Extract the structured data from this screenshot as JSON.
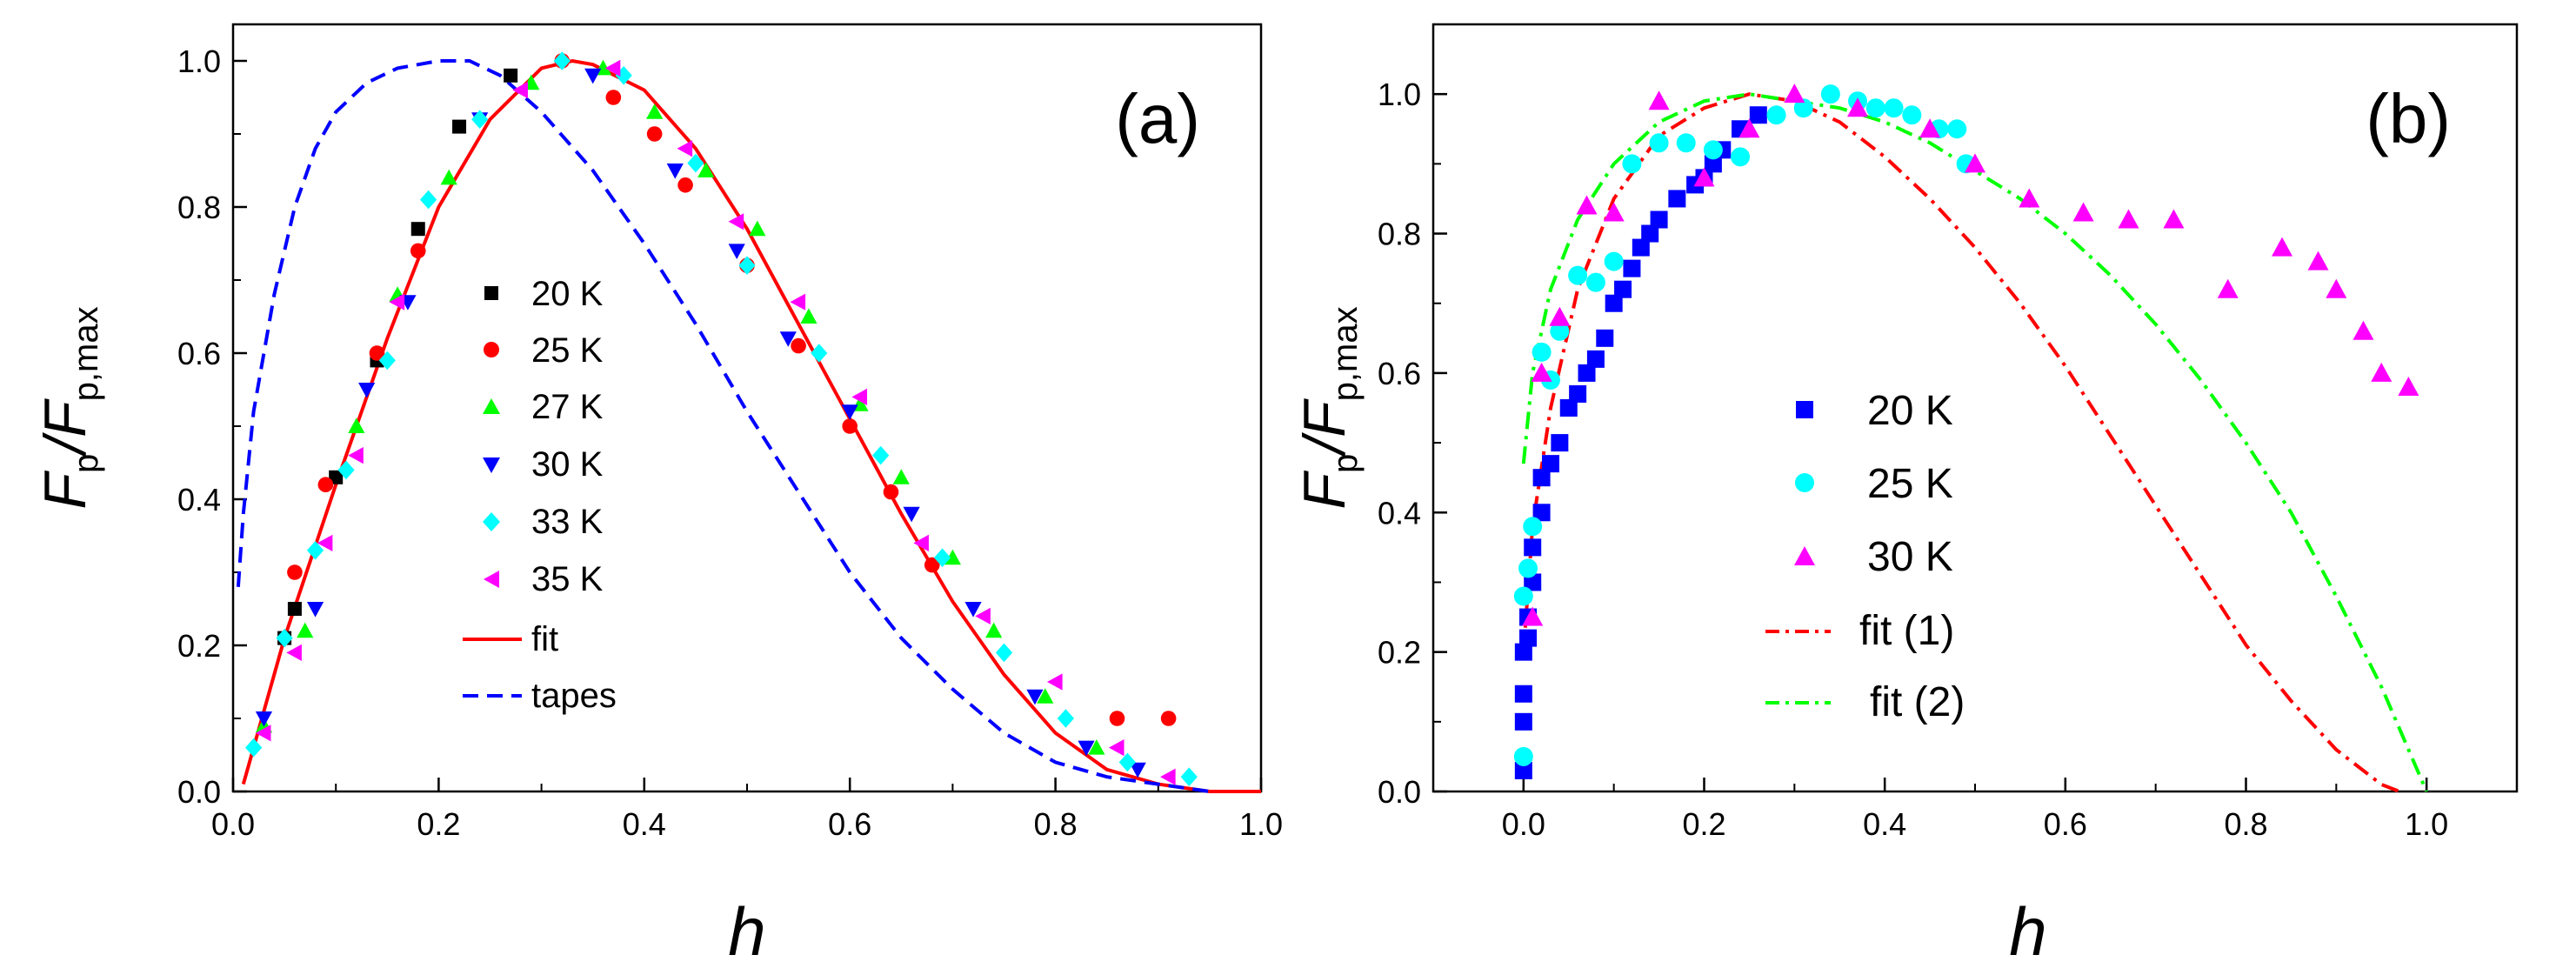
{
  "chart_data": [
    {
      "panel": "(a)",
      "type": "scatter",
      "xlabel": "h",
      "ylabel": "F_p/F_p,max",
      "ylabel_main": "F",
      "ylabel_sub1": "p",
      "ylabel_slash": "/F",
      "ylabel_sub2": "p,max",
      "xlim": [
        0.0,
        1.0
      ],
      "ylim": [
        0.0,
        1.05
      ],
      "xticks": [
        "0.0",
        "0.2",
        "0.4",
        "0.6",
        "0.8",
        "1.0"
      ],
      "yticks": [
        "0.0",
        "0.2",
        "0.4",
        "0.6",
        "0.8",
        "1.0"
      ],
      "legend_position": "center-left",
      "series": [
        {
          "name": "20 K",
          "marker": "square",
          "color": "#000000",
          "x": [
            0.05,
            0.06,
            0.1,
            0.14,
            0.18,
            0.22,
            0.27
          ],
          "y": [
            0.21,
            0.25,
            0.43,
            0.59,
            0.77,
            0.91,
            0.98
          ]
        },
        {
          "name": "25 K",
          "marker": "circle",
          "color": "#ff0000",
          "x": [
            0.06,
            0.09,
            0.14,
            0.18,
            0.32,
            0.37,
            0.41,
            0.44,
            0.5,
            0.55,
            0.6,
            0.64,
            0.68,
            0.86,
            0.91
          ],
          "y": [
            0.3,
            0.42,
            0.6,
            0.74,
            1.0,
            0.95,
            0.9,
            0.83,
            0.72,
            0.61,
            0.5,
            0.41,
            0.31,
            0.1,
            0.1
          ]
        },
        {
          "name": "27 K",
          "marker": "triangle-up",
          "color": "#00ff00",
          "x": [
            0.03,
            0.07,
            0.12,
            0.16,
            0.21,
            0.29,
            0.36,
            0.41,
            0.46,
            0.51,
            0.56,
            0.61,
            0.65,
            0.7,
            0.74,
            0.79,
            0.84
          ],
          "y": [
            0.09,
            0.22,
            0.5,
            0.68,
            0.84,
            0.97,
            0.99,
            0.93,
            0.85,
            0.77,
            0.65,
            0.53,
            0.43,
            0.32,
            0.22,
            0.13,
            0.06
          ]
        },
        {
          "name": "30 K",
          "marker": "triangle-down",
          "color": "#0000ff",
          "x": [
            0.03,
            0.08,
            0.13,
            0.17,
            0.24,
            0.35,
            0.43,
            0.49,
            0.54,
            0.6,
            0.66,
            0.72,
            0.78,
            0.83,
            0.88
          ],
          "y": [
            0.1,
            0.25,
            0.55,
            0.67,
            0.92,
            0.98,
            0.85,
            0.74,
            0.62,
            0.52,
            0.38,
            0.25,
            0.13,
            0.06,
            0.03
          ]
        },
        {
          "name": "33 K",
          "marker": "diamond",
          "color": "#00ffff",
          "x": [
            0.02,
            0.05,
            0.08,
            0.11,
            0.15,
            0.19,
            0.24,
            0.32,
            0.38,
            0.45,
            0.5,
            0.57,
            0.63,
            0.69,
            0.75,
            0.81,
            0.87,
            0.93
          ],
          "y": [
            0.06,
            0.21,
            0.33,
            0.44,
            0.59,
            0.81,
            0.92,
            1.0,
            0.98,
            0.86,
            0.72,
            0.6,
            0.46,
            0.32,
            0.19,
            0.1,
            0.04,
            0.02
          ]
        },
        {
          "name": "35 K",
          "marker": "triangle-left",
          "color": "#ff00ff",
          "x": [
            0.03,
            0.06,
            0.09,
            0.12,
            0.16,
            0.28,
            0.37,
            0.44,
            0.49,
            0.55,
            0.61,
            0.67,
            0.73,
            0.8,
            0.86,
            0.91
          ],
          "y": [
            0.08,
            0.19,
            0.34,
            0.46,
            0.67,
            0.96,
            0.99,
            0.88,
            0.78,
            0.67,
            0.54,
            0.34,
            0.24,
            0.15,
            0.06,
            0.02
          ]
        }
      ],
      "lines": [
        {
          "name": "fit",
          "style": "solid",
          "color": "#ff0000",
          "x": [
            0.01,
            0.05,
            0.1,
            0.15,
            0.2,
            0.25,
            0.3,
            0.33,
            0.35,
            0.4,
            0.45,
            0.5,
            0.55,
            0.6,
            0.65,
            0.7,
            0.75,
            0.8,
            0.85,
            0.9,
            0.95,
            1.0
          ],
          "y": [
            0.01,
            0.21,
            0.42,
            0.62,
            0.8,
            0.92,
            0.99,
            1.0,
            0.995,
            0.96,
            0.88,
            0.77,
            0.64,
            0.51,
            0.38,
            0.26,
            0.16,
            0.08,
            0.03,
            0.01,
            0.0,
            0.0
          ]
        },
        {
          "name": "tapes",
          "style": "dashed",
          "color": "#0000ff",
          "x": [
            0.005,
            0.01,
            0.02,
            0.04,
            0.06,
            0.08,
            0.1,
            0.13,
            0.16,
            0.2,
            0.23,
            0.26,
            0.3,
            0.35,
            0.4,
            0.45,
            0.5,
            0.55,
            0.6,
            0.65,
            0.7,
            0.75,
            0.8,
            0.85,
            0.9,
            0.95
          ],
          "y": [
            0.28,
            0.38,
            0.52,
            0.68,
            0.8,
            0.88,
            0.93,
            0.97,
            0.99,
            1.0,
            1.0,
            0.98,
            0.93,
            0.85,
            0.75,
            0.64,
            0.52,
            0.41,
            0.3,
            0.21,
            0.14,
            0.08,
            0.04,
            0.02,
            0.01,
            0.0
          ]
        }
      ]
    },
    {
      "panel": "(b)",
      "type": "scatter",
      "xlabel": "h",
      "ylabel": "F_p/F_p,max",
      "ylabel_main": "F",
      "ylabel_sub1": "p",
      "ylabel_slash": "/F",
      "ylabel_sub2": "p,max",
      "xlim": [
        -0.1,
        1.1
      ],
      "ylim": [
        0.0,
        1.1
      ],
      "xticks": [
        "0.0",
        "0.2",
        "0.4",
        "0.6",
        "0.8",
        "1.0"
      ],
      "yticks": [
        "0.0",
        "0.2",
        "0.4",
        "0.6",
        "0.8",
        "1.0"
      ],
      "legend_position": "center",
      "series": [
        {
          "name": "20 K",
          "marker": "square",
          "color": "#0000ff",
          "x": [
            0.0,
            0.0,
            0.0,
            0.0,
            0.005,
            0.005,
            0.01,
            0.01,
            0.02,
            0.02,
            0.03,
            0.04,
            0.05,
            0.06,
            0.07,
            0.08,
            0.09,
            0.1,
            0.11,
            0.12,
            0.13,
            0.14,
            0.15,
            0.17,
            0.19,
            0.2,
            0.21,
            0.22,
            0.24,
            0.26
          ],
          "y": [
            0.03,
            0.1,
            0.14,
            0.2,
            0.22,
            0.25,
            0.3,
            0.35,
            0.4,
            0.45,
            0.47,
            0.5,
            0.55,
            0.57,
            0.6,
            0.62,
            0.65,
            0.7,
            0.72,
            0.75,
            0.78,
            0.8,
            0.82,
            0.85,
            0.87,
            0.88,
            0.9,
            0.92,
            0.95,
            0.97
          ]
        },
        {
          "name": "25 K",
          "marker": "circle",
          "color": "#00ffff",
          "x": [
            0.0,
            0.0,
            0.005,
            0.01,
            0.02,
            0.03,
            0.04,
            0.06,
            0.08,
            0.1,
            0.12,
            0.15,
            0.18,
            0.21,
            0.24,
            0.28,
            0.31,
            0.34,
            0.37,
            0.39,
            0.41,
            0.43,
            0.46,
            0.48,
            0.49
          ],
          "y": [
            0.05,
            0.28,
            0.32,
            0.38,
            0.63,
            0.59,
            0.66,
            0.74,
            0.73,
            0.76,
            0.9,
            0.93,
            0.93,
            0.92,
            0.91,
            0.97,
            0.98,
            1.0,
            0.99,
            0.98,
            0.98,
            0.97,
            0.95,
            0.95,
            0.9
          ]
        },
        {
          "name": "30 K",
          "marker": "triangle-up",
          "color": "#ff00ff",
          "x": [
            0.01,
            0.02,
            0.04,
            0.07,
            0.1,
            0.15,
            0.2,
            0.25,
            0.3,
            0.37,
            0.45,
            0.5,
            0.56,
            0.62,
            0.67,
            0.72,
            0.78,
            0.84,
            0.88,
            0.9,
            0.93,
            0.95,
            0.98
          ],
          "y": [
            0.25,
            0.6,
            0.68,
            0.84,
            0.83,
            0.99,
            0.88,
            0.95,
            1.0,
            0.98,
            0.95,
            0.9,
            0.85,
            0.83,
            0.82,
            0.82,
            0.72,
            0.78,
            0.76,
            0.72,
            0.66,
            0.6,
            0.58
          ]
        }
      ],
      "lines": [
        {
          "name": "fit (1)",
          "style": "dashdot",
          "color": "#ff0000",
          "x": [
            0.0,
            0.01,
            0.03,
            0.06,
            0.1,
            0.15,
            0.2,
            0.25,
            0.3,
            0.35,
            0.4,
            0.45,
            0.5,
            0.55,
            0.6,
            0.65,
            0.7,
            0.75,
            0.8,
            0.85,
            0.9,
            0.95,
            0.97
          ],
          "y": [
            0.2,
            0.38,
            0.55,
            0.72,
            0.85,
            0.94,
            0.98,
            1.0,
            0.99,
            0.96,
            0.91,
            0.85,
            0.78,
            0.7,
            0.61,
            0.51,
            0.41,
            0.31,
            0.21,
            0.13,
            0.06,
            0.01,
            0.0
          ]
        },
        {
          "name": "fit (2)",
          "style": "dashdot",
          "color": "#00ff00",
          "x": [
            0.0,
            0.01,
            0.03,
            0.06,
            0.1,
            0.15,
            0.2,
            0.25,
            0.3,
            0.35,
            0.4,
            0.45,
            0.5,
            0.55,
            0.6,
            0.65,
            0.7,
            0.75,
            0.8,
            0.85,
            0.9,
            0.95,
            0.98,
            1.0
          ],
          "y": [
            0.47,
            0.6,
            0.72,
            0.82,
            0.9,
            0.96,
            0.99,
            1.0,
            0.99,
            0.98,
            0.96,
            0.93,
            0.89,
            0.85,
            0.8,
            0.74,
            0.67,
            0.59,
            0.5,
            0.4,
            0.28,
            0.15,
            0.06,
            0.0
          ]
        }
      ]
    }
  ]
}
